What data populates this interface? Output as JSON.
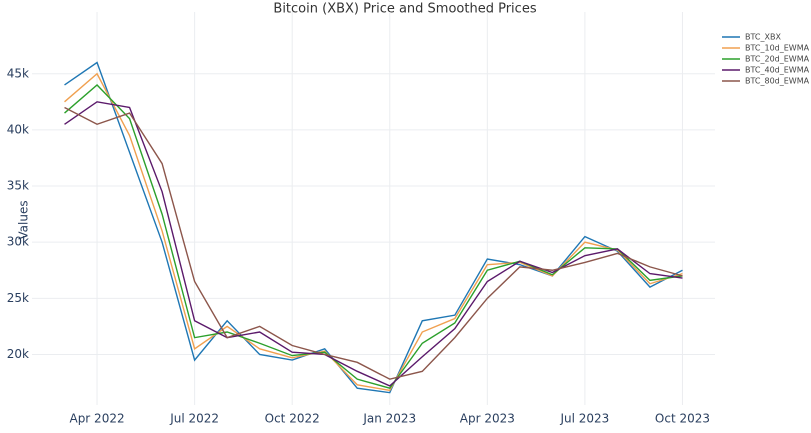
{
  "chart_data": {
    "type": "line",
    "title": "Bitcoin (XBX) Price and Smoothed Prices",
    "y_label": "Values",
    "x": [
      "2022-03",
      "2022-04",
      "2022-05",
      "2022-06",
      "2022-07",
      "2022-08",
      "2022-09",
      "2022-10",
      "2022-11",
      "2022-12",
      "2023-01",
      "2023-02",
      "2023-03",
      "2023-04",
      "2023-05",
      "2023-06",
      "2023-07",
      "2023-08",
      "2023-09",
      "2023-10"
    ],
    "xlim": [
      "2022-02",
      "2023-11"
    ],
    "xticks": [
      {
        "value": "2022-04",
        "label": "Apr 2022"
      },
      {
        "value": "2022-07",
        "label": "Jul 2022"
      },
      {
        "value": "2022-10",
        "label": "Oct 2022"
      },
      {
        "value": "2023-01",
        "label": "Jan 2023"
      },
      {
        "value": "2023-04",
        "label": "Apr 2023"
      },
      {
        "value": "2023-07",
        "label": "Jul 2023"
      },
      {
        "value": "2023-10",
        "label": "Oct 2023"
      }
    ],
    "ylim": [
      15500,
      50500
    ],
    "yticks": [
      {
        "value": 20000,
        "label": "20k"
      },
      {
        "value": 25000,
        "label": "25k"
      },
      {
        "value": 30000,
        "label": "30k"
      },
      {
        "value": 35000,
        "label": "35k"
      },
      {
        "value": 40000,
        "label": "40k"
      },
      {
        "value": 45000,
        "label": "45k"
      }
    ],
    "grid": true,
    "legend": "top-right",
    "series": [
      {
        "name": "BTC_XBX",
        "color": "#1f77b4",
        "values": [
          44000,
          46000,
          38000,
          30000,
          19500,
          23000,
          20000,
          19500,
          20500,
          17000,
          16600,
          23000,
          23500,
          28500,
          28000,
          27000,
          30500,
          29200,
          26000,
          27500
        ]
      },
      {
        "name": "BTC_10d_EWMA",
        "color": "#f0a050",
        "values": [
          42500,
          45000,
          39500,
          31000,
          20500,
          22500,
          20500,
          19700,
          20300,
          17300,
          16800,
          22000,
          23200,
          28000,
          28200,
          27000,
          30000,
          29300,
          26300,
          27200
        ]
      },
      {
        "name": "BTC_20d_EWMA",
        "color": "#2ca02c",
        "values": [
          41500,
          44000,
          41000,
          32500,
          21500,
          22000,
          21000,
          19900,
          20200,
          17800,
          17000,
          21000,
          22800,
          27500,
          28300,
          27100,
          29500,
          29400,
          26600,
          27000
        ]
      },
      {
        "name": "BTC_40d_EWMA",
        "color": "#5b1a6b",
        "values": [
          40500,
          42500,
          42000,
          34500,
          23000,
          21500,
          22000,
          20200,
          20000,
          18500,
          17200,
          19800,
          22300,
          26500,
          28300,
          27300,
          28800,
          29400,
          27200,
          26800
        ]
      },
      {
        "name": "BTC_80d_EWMA",
        "color": "#8c564b",
        "values": [
          42000,
          40500,
          41500,
          37000,
          26500,
          21500,
          22500,
          20800,
          20000,
          19300,
          17800,
          18500,
          21500,
          25000,
          27800,
          27500,
          28200,
          29000,
          27800,
          27000
        ]
      }
    ]
  }
}
